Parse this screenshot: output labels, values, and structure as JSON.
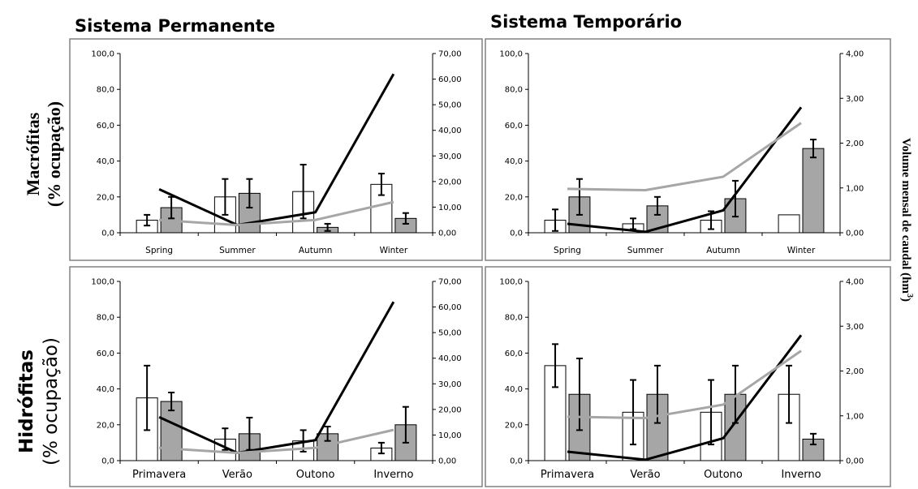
{
  "headers": {
    "col_left": "Sistema Permanente",
    "col_right": "Sistema Temporário",
    "row_top_line1": "Macrófitas",
    "row_top_line2": "(% ocupação)",
    "row_bottom_line1": "Hidrófitas",
    "row_bottom_line2": "(% ocupação)",
    "right_axis_label": "Volume mensal de caudal (hm",
    "right_axis_label_sup": "3",
    "right_axis_label_end": ")"
  },
  "colors": {
    "bar_open_fill": "#ffffff",
    "bar_grey_fill": "#a6a6a6",
    "line_black": "#000000",
    "line_grey": "#a6a6a6",
    "frame": "#808080"
  },
  "chart_data": [
    {
      "type": "bar",
      "panel": "Macrófitas - Sistema Permanente",
      "categories": [
        "Spring",
        "Summer",
        "Autumn",
        "Winter"
      ],
      "ylim": [
        0,
        100
      ],
      "y_ticks": [
        "0,0",
        "20,0",
        "40,0",
        "60,0",
        "80,0",
        "100,0"
      ],
      "y2lim": [
        0,
        70
      ],
      "y2_ticks": [
        "0,00",
        "10,00",
        "20,00",
        "30,00",
        "40,00",
        "50,00",
        "60,00",
        "70,00"
      ],
      "bars": [
        {
          "style": "open",
          "values": [
            7,
            20,
            23,
            27
          ],
          "err": [
            3,
            10,
            15,
            6
          ]
        },
        {
          "style": "grey",
          "values": [
            14,
            22,
            3,
            8
          ],
          "err": [
            6,
            8,
            2,
            3
          ]
        }
      ],
      "lines": [
        {
          "style": "black",
          "values": [
            17,
            3,
            8,
            62
          ]
        },
        {
          "style": "grey",
          "values": [
            5,
            3,
            5,
            12
          ]
        }
      ]
    },
    {
      "type": "bar",
      "panel": "Macrófitas - Sistema Temporário",
      "categories": [
        "Spring",
        "Summer",
        "Autumn",
        "Winter"
      ],
      "ylim": [
        0,
        100
      ],
      "y_ticks": [
        "0,0",
        "20,0",
        "40,0",
        "60,0",
        "80,0",
        "100,0"
      ],
      "y2lim": [
        0,
        4
      ],
      "y2_ticks": [
        "0,00",
        "1,00",
        "2,00",
        "3,00",
        "4,00"
      ],
      "bars": [
        {
          "style": "open",
          "values": [
            7,
            5,
            7,
            10
          ],
          "err": [
            6,
            3,
            5,
            0
          ]
        },
        {
          "style": "grey",
          "values": [
            20,
            15,
            19,
            47
          ],
          "err": [
            10,
            5,
            10,
            5
          ]
        }
      ],
      "lines": [
        {
          "style": "black",
          "values": [
            0.2,
            0.02,
            0.5,
            2.8
          ]
        },
        {
          "style": "grey",
          "values": [
            0.98,
            0.95,
            1.25,
            2.45
          ]
        }
      ]
    },
    {
      "type": "bar",
      "panel": "Hidrófitas - Sistema Permanente",
      "categories": [
        "Primavera",
        "Verão",
        "Outono",
        "Inverno"
      ],
      "ylim": [
        0,
        100
      ],
      "y_ticks": [
        "0,0",
        "20,0",
        "40,0",
        "60,0",
        "80,0",
        "100,0"
      ],
      "y2lim": [
        0,
        70
      ],
      "y2_ticks": [
        "0,00",
        "10,00",
        "20,00",
        "30,00",
        "40,00",
        "50,00",
        "60,00",
        "70,00"
      ],
      "bars": [
        {
          "style": "open",
          "values": [
            35,
            12,
            11,
            7
          ],
          "err": [
            18,
            6,
            6,
            3
          ]
        },
        {
          "style": "grey",
          "values": [
            33,
            15,
            15,
            20
          ],
          "err": [
            5,
            9,
            4,
            10
          ]
        }
      ],
      "lines": [
        {
          "style": "black",
          "values": [
            17,
            3,
            8,
            62
          ]
        },
        {
          "style": "grey",
          "values": [
            5,
            3,
            5,
            12
          ]
        }
      ]
    },
    {
      "type": "bar",
      "panel": "Hidrófitas - Sistema Temporário",
      "categories": [
        "Primavera",
        "Verão",
        "Outono",
        "Inverno"
      ],
      "ylim": [
        0,
        100
      ],
      "y_ticks": [
        "0,0",
        "20,0",
        "40,0",
        "60,0",
        "80,0",
        "100,0"
      ],
      "y2lim": [
        0,
        4
      ],
      "y2_ticks": [
        "0,00",
        "1,00",
        "2,00",
        "3,00",
        "4,00"
      ],
      "bars": [
        {
          "style": "open",
          "values": [
            53,
            27,
            27,
            37
          ],
          "err": [
            12,
            18,
            18,
            16
          ]
        },
        {
          "style": "grey",
          "values": [
            37,
            37,
            37,
            12
          ],
          "err": [
            20,
            16,
            16,
            3
          ]
        }
      ],
      "lines": [
        {
          "style": "black",
          "values": [
            0.2,
            0.02,
            0.5,
            2.8
          ]
        },
        {
          "style": "grey",
          "values": [
            0.98,
            0.95,
            1.25,
            2.45
          ]
        }
      ]
    }
  ]
}
